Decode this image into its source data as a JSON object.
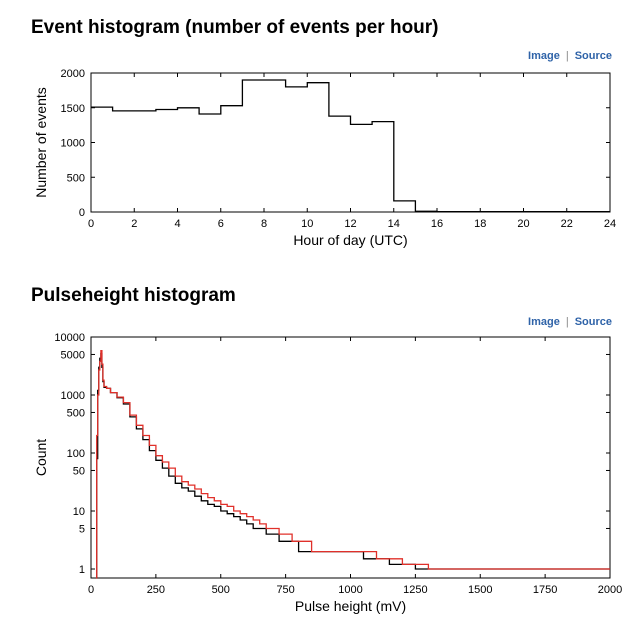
{
  "links": {
    "image": "Image",
    "source": "Source"
  },
  "chart_data": [
    {
      "title": "Event histogram (number of events per hour)",
      "type": "histogram",
      "xlabel": "Hour of day (UTC)",
      "ylabel": "Number of events",
      "xlim": [
        0,
        24
      ],
      "ylim": [
        0,
        2000
      ],
      "xticks": [
        0,
        2,
        4,
        6,
        8,
        10,
        12,
        14,
        16,
        18,
        20,
        22,
        24
      ],
      "yticks": [
        0,
        500,
        1000,
        1500,
        2000
      ],
      "grid": false,
      "series": [
        {
          "color": "#000000",
          "bin_width": 1,
          "x": [
            0,
            1,
            2,
            3,
            4,
            5,
            6,
            7,
            8,
            9,
            10,
            11,
            12,
            13,
            14,
            15,
            16,
            17,
            18,
            19,
            20,
            21,
            22,
            23
          ],
          "values": [
            1510,
            1455,
            1455,
            1475,
            1500,
            1410,
            1530,
            1900,
            1900,
            1800,
            1860,
            1380,
            1260,
            1300,
            160,
            10,
            5,
            5,
            5,
            5,
            5,
            5,
            5,
            5
          ]
        }
      ]
    },
    {
      "title": "Pulseheight histogram",
      "type": "histogram",
      "xlabel": "Pulse height (mV)",
      "ylabel": "Count",
      "xlim": [
        0,
        2000
      ],
      "ylim": [
        0.7,
        10000
      ],
      "yscale": "log",
      "xticks": [
        0,
        250,
        500,
        750,
        1000,
        1250,
        1500,
        1750,
        2000
      ],
      "yticks": [
        1,
        5,
        10,
        50,
        100,
        500,
        1000,
        5000,
        10000
      ],
      "grid": false,
      "series": [
        {
          "color": "#000000",
          "points": [
            [
              20,
              0.7
            ],
            [
              22,
              80
            ],
            [
              26,
              1200
            ],
            [
              30,
              3000
            ],
            [
              34,
              4300
            ],
            [
              38,
              5200
            ],
            [
              42,
              3000
            ],
            [
              46,
              1700
            ],
            [
              50,
              1350
            ],
            [
              60,
              1300
            ],
            [
              75,
              1100
            ],
            [
              100,
              900
            ],
            [
              125,
              700
            ],
            [
              150,
              420
            ],
            [
              175,
              260
            ],
            [
              200,
              170
            ],
            [
              225,
              110
            ],
            [
              250,
              75
            ],
            [
              275,
              55
            ],
            [
              300,
              40
            ],
            [
              325,
              30
            ],
            [
              350,
              25
            ],
            [
              375,
              22
            ],
            [
              400,
              18
            ],
            [
              425,
              15
            ],
            [
              450,
              13
            ],
            [
              475,
              12
            ],
            [
              500,
              10
            ],
            [
              525,
              9
            ],
            [
              550,
              8
            ],
            [
              575,
              7
            ],
            [
              600,
              6
            ],
            [
              625,
              5
            ],
            [
              650,
              5
            ],
            [
              675,
              4
            ],
            [
              700,
              4
            ],
            [
              725,
              3
            ],
            [
              750,
              3
            ],
            [
              775,
              3
            ],
            [
              800,
              2
            ],
            [
              825,
              2
            ],
            [
              850,
              2
            ],
            [
              875,
              2
            ],
            [
              900,
              2
            ],
            [
              950,
              2
            ],
            [
              1000,
              2
            ],
            [
              1050,
              1.5
            ],
            [
              1100,
              1.5
            ],
            [
              1150,
              1.2
            ],
            [
              1200,
              1.2
            ],
            [
              1250,
              1
            ],
            [
              1300,
              1
            ],
            [
              1350,
              1
            ],
            [
              1400,
              1
            ],
            [
              1450,
              1
            ],
            [
              1500,
              1
            ],
            [
              1550,
              1
            ],
            [
              1600,
              1
            ],
            [
              1650,
              1
            ],
            [
              1700,
              1
            ],
            [
              1750,
              1
            ],
            [
              1800,
              1
            ],
            [
              1850,
              1
            ],
            [
              1900,
              1
            ],
            [
              1950,
              1
            ],
            [
              2000,
              1
            ]
          ]
        },
        {
          "color": "#e0302a",
          "points": [
            [
              20,
              0.7
            ],
            [
              22,
              200
            ],
            [
              26,
              1000
            ],
            [
              30,
              2700
            ],
            [
              34,
              3800
            ],
            [
              38,
              5800
            ],
            [
              42,
              3400
            ],
            [
              46,
              1800
            ],
            [
              50,
              1400
            ],
            [
              60,
              1300
            ],
            [
              75,
              1100
            ],
            [
              100,
              920
            ],
            [
              125,
              740
            ],
            [
              150,
              450
            ],
            [
              175,
              300
            ],
            [
              200,
              200
            ],
            [
              225,
              135
            ],
            [
              250,
              90
            ],
            [
              275,
              70
            ],
            [
              300,
              55
            ],
            [
              325,
              40
            ],
            [
              350,
              32
            ],
            [
              375,
              28
            ],
            [
              400,
              24
            ],
            [
              425,
              20
            ],
            [
              450,
              17
            ],
            [
              475,
              15
            ],
            [
              500,
              13
            ],
            [
              525,
              12
            ],
            [
              550,
              10
            ],
            [
              575,
              9
            ],
            [
              600,
              8
            ],
            [
              625,
              7
            ],
            [
              650,
              6
            ],
            [
              675,
              5
            ],
            [
              700,
              5
            ],
            [
              725,
              4
            ],
            [
              750,
              4
            ],
            [
              775,
              3
            ],
            [
              800,
              3
            ],
            [
              825,
              3
            ],
            [
              850,
              2
            ],
            [
              875,
              2
            ],
            [
              900,
              2
            ],
            [
              950,
              2
            ],
            [
              1000,
              2
            ],
            [
              1050,
              2
            ],
            [
              1100,
              1.5
            ],
            [
              1150,
              1.5
            ],
            [
              1200,
              1.2
            ],
            [
              1250,
              1.2
            ],
            [
              1300,
              1
            ],
            [
              1350,
              1
            ],
            [
              1400,
              1
            ],
            [
              1450,
              1
            ],
            [
              1500,
              1
            ],
            [
              1550,
              1
            ],
            [
              1600,
              1
            ],
            [
              1650,
              1
            ],
            [
              1700,
              1
            ],
            [
              1750,
              1
            ],
            [
              1800,
              1
            ],
            [
              1850,
              1
            ],
            [
              1900,
              1
            ],
            [
              1950,
              1
            ],
            [
              2000,
              1
            ]
          ]
        }
      ]
    }
  ]
}
